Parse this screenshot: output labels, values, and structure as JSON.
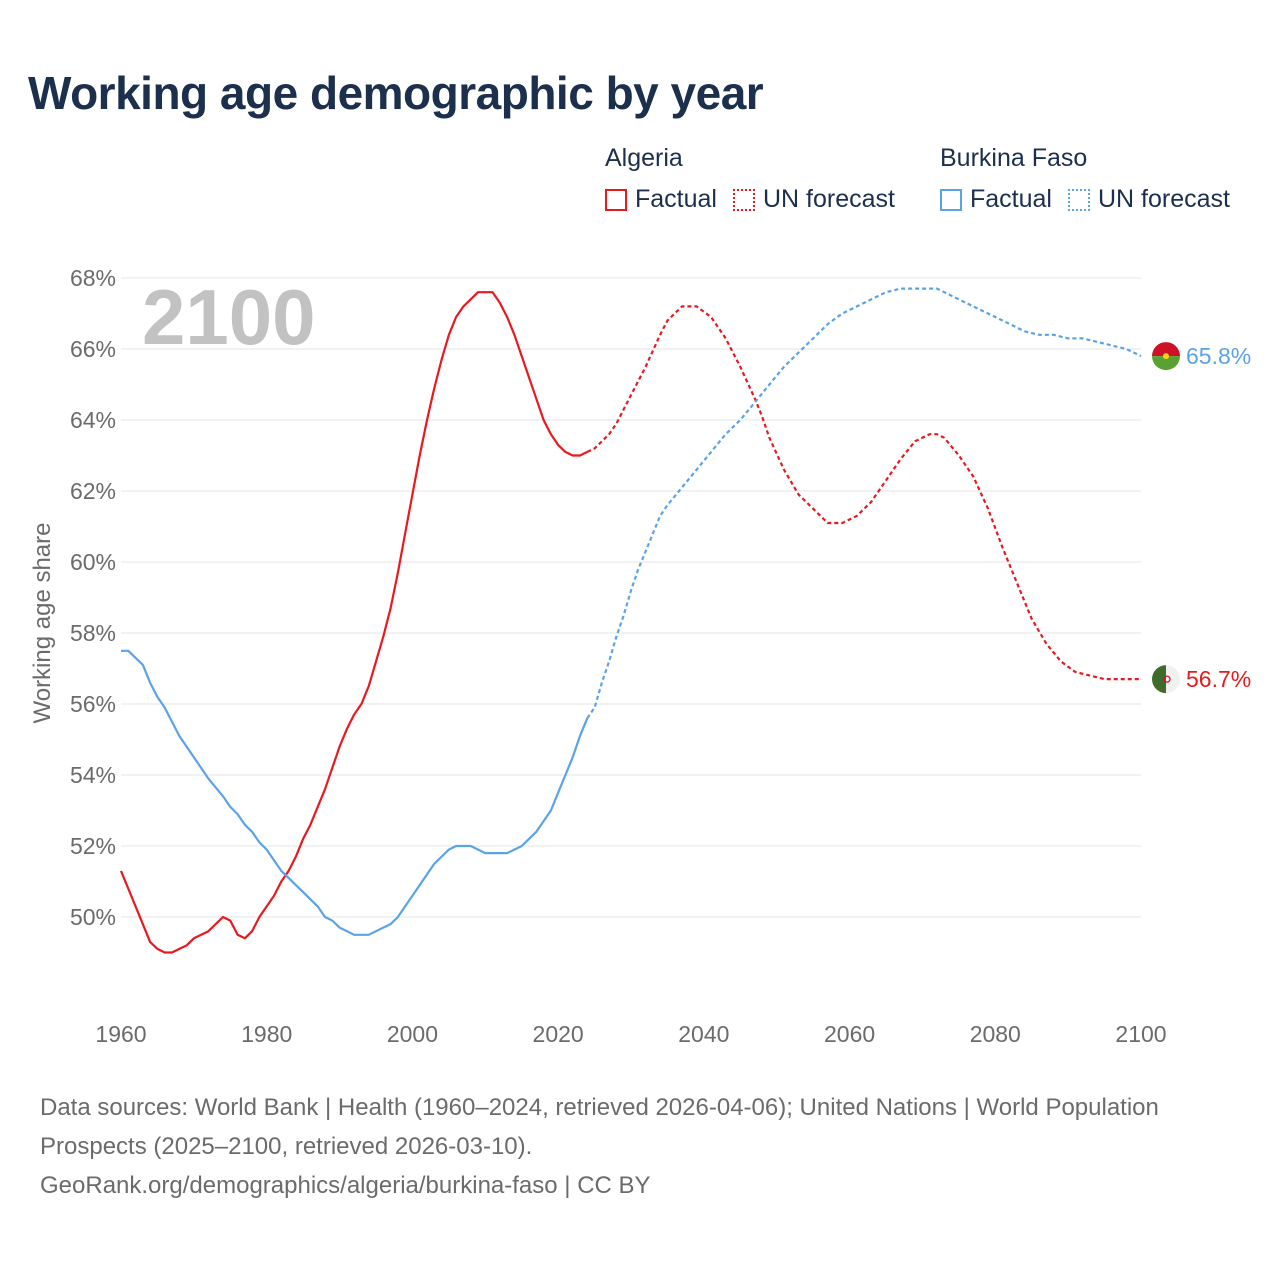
{
  "title": "Working age demographic by year",
  "legend": {
    "groups": [
      {
        "country": "Algeria",
        "factual_label": "Factual",
        "forecast_label": "UN forecast",
        "color": "#e8191f"
      },
      {
        "country": "Burkina Faso",
        "factual_label": "Factual",
        "forecast_label": "UN forecast",
        "color": "#5aa3e8"
      }
    ]
  },
  "year_badge": "2100",
  "footer": {
    "sources": "Data sources: World Bank | Health (1960–2024, retrieved 2026-04-06); United Nations | World Population Prospects (2025–2100, retrieved 2026-03-10).",
    "attribution": "GeoRank.org/demographics/algeria/burkina-faso | CC BY"
  },
  "chart_data": {
    "type": "line",
    "title": "Working age demographic by year",
    "xlabel": "",
    "ylabel": "Working age share",
    "xlim": [
      1960,
      2100
    ],
    "ylim": [
      48,
      68
    ],
    "x_ticks": [
      1960,
      1980,
      2000,
      2020,
      2040,
      2060,
      2080,
      2100
    ],
    "y_ticks": [
      50,
      52,
      54,
      56,
      58,
      60,
      62,
      64,
      66,
      68
    ],
    "y_tick_labels": [
      "50%",
      "52%",
      "54%",
      "56%",
      "58%",
      "60%",
      "62%",
      "64%",
      "66%",
      "68%"
    ],
    "grid": true,
    "forecast_start": 2024,
    "series": [
      {
        "name": "Algeria",
        "color": "#e8191f",
        "end_label": "56.7%",
        "points": [
          [
            1960,
            51.3
          ],
          [
            1962,
            50.3
          ],
          [
            1964,
            49.3
          ],
          [
            1965,
            49.1
          ],
          [
            1966,
            49.0
          ],
          [
            1967,
            49.0
          ],
          [
            1968,
            49.1
          ],
          [
            1969,
            49.2
          ],
          [
            1970,
            49.4
          ],
          [
            1972,
            49.6
          ],
          [
            1974,
            50.0
          ],
          [
            1975,
            49.9
          ],
          [
            1976,
            49.5
          ],
          [
            1977,
            49.4
          ],
          [
            1978,
            49.6
          ],
          [
            1979,
            50.0
          ],
          [
            1980,
            50.3
          ],
          [
            1981,
            50.6
          ],
          [
            1982,
            51.0
          ],
          [
            1983,
            51.3
          ],
          [
            1984,
            51.7
          ],
          [
            1985,
            52.2
          ],
          [
            1986,
            52.6
          ],
          [
            1987,
            53.1
          ],
          [
            1988,
            53.6
          ],
          [
            1989,
            54.2
          ],
          [
            1990,
            54.8
          ],
          [
            1991,
            55.3
          ],
          [
            1992,
            55.7
          ],
          [
            1993,
            56.0
          ],
          [
            1994,
            56.5
          ],
          [
            1995,
            57.2
          ],
          [
            1996,
            57.9
          ],
          [
            1997,
            58.7
          ],
          [
            1998,
            59.7
          ],
          [
            1999,
            60.8
          ],
          [
            2000,
            61.9
          ],
          [
            2001,
            63.0
          ],
          [
            2002,
            64.0
          ],
          [
            2003,
            64.9
          ],
          [
            2004,
            65.7
          ],
          [
            2005,
            66.4
          ],
          [
            2006,
            66.9
          ],
          [
            2007,
            67.2
          ],
          [
            2008,
            67.4
          ],
          [
            2009,
            67.6
          ],
          [
            2010,
            67.6
          ],
          [
            2011,
            67.6
          ],
          [
            2012,
            67.3
          ],
          [
            2013,
            66.9
          ],
          [
            2014,
            66.4
          ],
          [
            2015,
            65.8
          ],
          [
            2016,
            65.2
          ],
          [
            2017,
            64.6
          ],
          [
            2018,
            64.0
          ],
          [
            2019,
            63.6
          ],
          [
            2020,
            63.3
          ],
          [
            2021,
            63.1
          ],
          [
            2022,
            63.0
          ],
          [
            2023,
            63.0
          ],
          [
            2024,
            63.1
          ],
          [
            2025,
            63.2
          ],
          [
            2026,
            63.4
          ],
          [
            2027,
            63.6
          ],
          [
            2028,
            63.9
          ],
          [
            2030,
            64.7
          ],
          [
            2032,
            65.5
          ],
          [
            2034,
            66.4
          ],
          [
            2035,
            66.8
          ],
          [
            2036,
            67.0
          ],
          [
            2037,
            67.2
          ],
          [
            2039,
            67.2
          ],
          [
            2041,
            66.9
          ],
          [
            2043,
            66.3
          ],
          [
            2045,
            65.5
          ],
          [
            2047,
            64.6
          ],
          [
            2048,
            64.1
          ],
          [
            2049,
            63.5
          ],
          [
            2051,
            62.6
          ],
          [
            2053,
            61.9
          ],
          [
            2055,
            61.5
          ],
          [
            2057,
            61.1
          ],
          [
            2059,
            61.1
          ],
          [
            2061,
            61.3
          ],
          [
            2063,
            61.7
          ],
          [
            2065,
            62.3
          ],
          [
            2067,
            62.9
          ],
          [
            2069,
            63.4
          ],
          [
            2071,
            63.6
          ],
          [
            2072,
            63.6
          ],
          [
            2073,
            63.5
          ],
          [
            2075,
            63.0
          ],
          [
            2077,
            62.4
          ],
          [
            2079,
            61.5
          ],
          [
            2081,
            60.4
          ],
          [
            2083,
            59.4
          ],
          [
            2085,
            58.4
          ],
          [
            2087,
            57.7
          ],
          [
            2089,
            57.2
          ],
          [
            2091,
            56.9
          ],
          [
            2093,
            56.8
          ],
          [
            2095,
            56.7
          ],
          [
            2097,
            56.7
          ],
          [
            2099,
            56.7
          ],
          [
            2100,
            56.7
          ]
        ]
      },
      {
        "name": "Burkina Faso",
        "color": "#5aa3e8",
        "end_label": "65.8%",
        "points": [
          [
            1960,
            57.5
          ],
          [
            1961,
            57.5
          ],
          [
            1962,
            57.3
          ],
          [
            1963,
            57.1
          ],
          [
            1964,
            56.6
          ],
          [
            1965,
            56.2
          ],
          [
            1966,
            55.9
          ],
          [
            1967,
            55.5
          ],
          [
            1968,
            55.1
          ],
          [
            1969,
            54.8
          ],
          [
            1970,
            54.5
          ],
          [
            1972,
            53.9
          ],
          [
            1974,
            53.4
          ],
          [
            1975,
            53.1
          ],
          [
            1976,
            52.9
          ],
          [
            1977,
            52.6
          ],
          [
            1978,
            52.4
          ],
          [
            1979,
            52.1
          ],
          [
            1980,
            51.9
          ],
          [
            1981,
            51.6
          ],
          [
            1982,
            51.3
          ],
          [
            1983,
            51.1
          ],
          [
            1984,
            50.9
          ],
          [
            1985,
            50.7
          ],
          [
            1986,
            50.5
          ],
          [
            1987,
            50.3
          ],
          [
            1988,
            50.0
          ],
          [
            1989,
            49.9
          ],
          [
            1990,
            49.7
          ],
          [
            1991,
            49.6
          ],
          [
            1992,
            49.5
          ],
          [
            1994,
            49.5
          ],
          [
            1995,
            49.6
          ],
          [
            1996,
            49.7
          ],
          [
            1997,
            49.8
          ],
          [
            1998,
            50.0
          ],
          [
            1999,
            50.3
          ],
          [
            2000,
            50.6
          ],
          [
            2001,
            50.9
          ],
          [
            2002,
            51.2
          ],
          [
            2003,
            51.5
          ],
          [
            2004,
            51.7
          ],
          [
            2005,
            51.9
          ],
          [
            2006,
            52.0
          ],
          [
            2008,
            52.0
          ],
          [
            2010,
            51.8
          ],
          [
            2012,
            51.8
          ],
          [
            2013,
            51.8
          ],
          [
            2014,
            51.9
          ],
          [
            2015,
            52.0
          ],
          [
            2016,
            52.2
          ],
          [
            2017,
            52.4
          ],
          [
            2018,
            52.7
          ],
          [
            2019,
            53.0
          ],
          [
            2020,
            53.5
          ],
          [
            2021,
            54.0
          ],
          [
            2022,
            54.5
          ],
          [
            2023,
            55.1
          ],
          [
            2024,
            55.6
          ],
          [
            2025,
            55.9
          ],
          [
            2026,
            56.6
          ],
          [
            2027,
            57.2
          ],
          [
            2028,
            57.9
          ],
          [
            2029,
            58.5
          ],
          [
            2030,
            59.2
          ],
          [
            2031,
            59.8
          ],
          [
            2032,
            60.3
          ],
          [
            2033,
            60.8
          ],
          [
            2034,
            61.3
          ],
          [
            2035,
            61.6
          ],
          [
            2037,
            62.1
          ],
          [
            2039,
            62.6
          ],
          [
            2041,
            63.1
          ],
          [
            2043,
            63.6
          ],
          [
            2045,
            64.0
          ],
          [
            2047,
            64.5
          ],
          [
            2049,
            65.0
          ],
          [
            2051,
            65.5
          ],
          [
            2053,
            65.9
          ],
          [
            2055,
            66.3
          ],
          [
            2057,
            66.7
          ],
          [
            2059,
            67.0
          ],
          [
            2061,
            67.2
          ],
          [
            2063,
            67.4
          ],
          [
            2065,
            67.6
          ],
          [
            2067,
            67.7
          ],
          [
            2072,
            67.7
          ],
          [
            2074,
            67.5
          ],
          [
            2076,
            67.3
          ],
          [
            2078,
            67.1
          ],
          [
            2080,
            66.9
          ],
          [
            2082,
            66.7
          ],
          [
            2084,
            66.5
          ],
          [
            2086,
            66.4
          ],
          [
            2088,
            66.4
          ],
          [
            2090,
            66.3
          ],
          [
            2092,
            66.3
          ],
          [
            2094,
            66.2
          ],
          [
            2096,
            66.1
          ],
          [
            2098,
            66.0
          ],
          [
            2100,
            65.8
          ]
        ]
      }
    ]
  }
}
